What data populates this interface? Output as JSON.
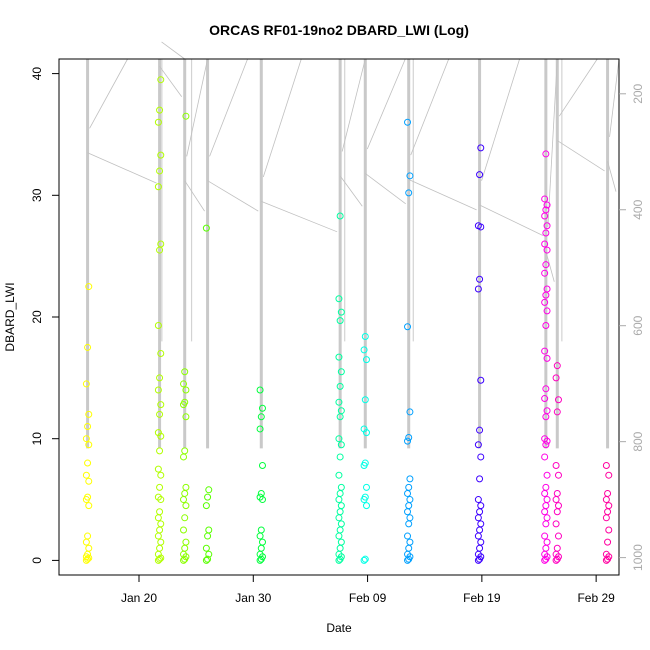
{
  "chart_data": {
    "type": "scatter",
    "title": "ORCAS RF01-19no2 DBARD_LWI (Log)",
    "xlabel": "Date",
    "ylabel": "DBARD_LWI",
    "xlim": [
      "2016-01-13",
      "2016-03-02"
    ],
    "ylim": [
      -1.2,
      41.2
    ],
    "x_ticks": [
      {
        "date": "2016-01-20",
        "label": "Jan 20"
      },
      {
        "date": "2016-01-30",
        "label": "Jan 30"
      },
      {
        "date": "2016-02-09",
        "label": "Feb 09"
      },
      {
        "date": "2016-02-19",
        "label": "Feb 19"
      },
      {
        "date": "2016-02-29",
        "label": "Feb 29"
      }
    ],
    "y_ticks": [
      0,
      10,
      20,
      30,
      40
    ],
    "secondary_y": {
      "color": "#aaaaaa",
      "reversed": true,
      "lim": [
        1030,
        140
      ],
      "ticks": [
        200,
        400,
        600,
        800,
        1000
      ]
    },
    "background_line_color": "#c0c0c0",
    "marker": "open-circle",
    "flights": [
      {
        "date": "2016-01-15.5",
        "color": "#ffff00",
        "values": [
          0,
          0.1,
          0.2,
          0.3,
          0.5,
          1,
          1.5,
          2,
          4.5,
          5,
          5.2,
          6.5,
          7,
          8,
          9.5,
          10,
          11,
          12,
          14.5,
          17.5,
          22.5
        ]
      },
      {
        "date": "2016-01-21.8",
        "color": "#b2ff00",
        "values": [
          0,
          0.1,
          0.2,
          0.5,
          1,
          1.5,
          2,
          2.5,
          3,
          3.5,
          4,
          5,
          5.2,
          6,
          7,
          7.5,
          9,
          10.2,
          10.5,
          12,
          12.8,
          14,
          15,
          17,
          19.3,
          25.5,
          26,
          30.7,
          32,
          33.3,
          36,
          37,
          39.5
        ]
      },
      {
        "date": "2016-01-24.0",
        "color": "#8cff00",
        "values": [
          0,
          0.1,
          0.3,
          0.5,
          1,
          1.5,
          2.5,
          3.5,
          4.5,
          5,
          5.5,
          6,
          8.5,
          9,
          11.8,
          12.8,
          13,
          14,
          14.5,
          15.5,
          36.5
        ]
      },
      {
        "date": "2016-01-26.0",
        "color": "#59ff00",
        "values": [
          0,
          0.1,
          0.5,
          1,
          2,
          2.5,
          4.5,
          5.2,
          5.8,
          27.3
        ]
      },
      {
        "date": "2016-01-30.7",
        "color": "#00ff3c",
        "values": [
          0,
          0.1,
          0.3,
          0.5,
          1,
          1.5,
          2,
          2.5,
          5,
          5.2,
          5.5,
          7.8,
          10.8,
          11.8,
          12.5,
          14
        ]
      },
      {
        "date": "2016-02-06.6",
        "color": "#00ffa0",
        "values": [
          0,
          0.1,
          0.3,
          0.5,
          1,
          1.5,
          2,
          2.5,
          3,
          3.5,
          4,
          4.5,
          5,
          5.5,
          6,
          7,
          8.5,
          9.5,
          10,
          11.8,
          12.3,
          13,
          14.3,
          15.5,
          16.7,
          19.7,
          20.4,
          21.5,
          28.3
        ]
      },
      {
        "date": "2016-02-08.8",
        "color": "#00ffe6",
        "values": [
          0,
          0.1,
          4.5,
          5,
          5.2,
          6,
          7.8,
          8,
          10.5,
          10.8,
          13.2,
          16.5,
          17.3,
          18.4
        ]
      },
      {
        "date": "2016-02-12.6",
        "color": "#00a0ff",
        "values": [
          0,
          0.1,
          0.3,
          0.5,
          1,
          1.5,
          2,
          3,
          3.5,
          4,
          4.5,
          5,
          5.5,
          6,
          6.7,
          9.8,
          10.1,
          12.2,
          19.2,
          30.2,
          31.6,
          36
        ]
      },
      {
        "date": "2016-02-18.8",
        "color": "#3c00ff",
        "values": [
          0,
          0.1,
          0.3,
          0.5,
          1,
          1.5,
          2,
          2.5,
          3,
          3.5,
          4,
          4.5,
          5,
          6.7,
          8.5,
          9.5,
          10.7,
          14.8,
          22.3,
          23.1,
          27.4,
          27.5,
          31.7,
          33.9
        ]
      },
      {
        "date": "2016-02-24.6",
        "color": "#ff00e6",
        "values": [
          0,
          0.1,
          0.3,
          0.5,
          1,
          1.5,
          2,
          3,
          3.5,
          4,
          4.5,
          5,
          5.5,
          6,
          7,
          8.5,
          9.5,
          9.8,
          10,
          11.8,
          12.3,
          13.3,
          14.1,
          16.6,
          17.2,
          19.3,
          20.5,
          21.2,
          21.8,
          22.3,
          23.6,
          24.3,
          25.5,
          26,
          26.9,
          27.5,
          28.3,
          28.8,
          29.2,
          29.7,
          33.4
        ]
      },
      {
        "date": "2016-02-25.6",
        "color": "#ff00c0",
        "values": [
          0,
          0.1,
          0.3,
          0.5,
          1,
          2,
          3,
          4,
          4.5,
          5,
          5.5,
          7,
          7.8,
          12.2,
          13.2,
          15,
          16
        ]
      },
      {
        "date": "2016-03-01.0",
        "color": "#ff00a0",
        "values": [
          0,
          0.1,
          0.3,
          0.5,
          1.5,
          2.5,
          3.5,
          4,
          4.5,
          5,
          5.5,
          7,
          7.8
        ]
      }
    ]
  }
}
